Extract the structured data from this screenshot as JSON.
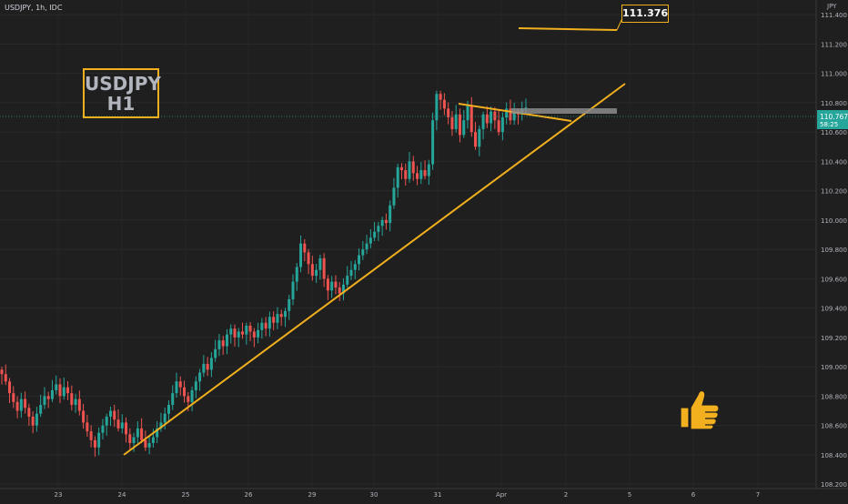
{
  "header": {
    "symbol_line": "USDJPY, 1h, IDC"
  },
  "annotations": {
    "pair_title": "USDJPY",
    "timeframe": "H1",
    "target_label": "111.376",
    "price_label": "110.767",
    "countdown_label": "58:25"
  },
  "icons": {
    "thumbs_up": "thumbs-up-icon"
  },
  "colors": {
    "background": "#1f1f1f",
    "bull": "#26a69a",
    "bear": "#ef5350",
    "annotation": "#f2b01e",
    "axis_text": "#b2b5be",
    "price_label_bg": "#26a69a"
  },
  "chart_data": {
    "type": "candlestick",
    "symbol": "USDJPY",
    "timeframe": "1h",
    "source": "IDC",
    "unit": "JPY",
    "ylim": [
      108.17,
      111.5
    ],
    "y_ticks": [
      111.4,
      111.2,
      111.0,
      110.8,
      110.6,
      110.4,
      110.2,
      110.0,
      109.8,
      109.6,
      109.4,
      109.2,
      109.0,
      108.8,
      108.6,
      108.4,
      108.2
    ],
    "x_ticks": [
      "23",
      "24",
      "25",
      "26",
      "29",
      "30",
      "31",
      "Apr",
      "2",
      "5",
      "6",
      "7"
    ],
    "current_price": 110.767,
    "target_price": 111.376,
    "resistance_zone": [
      110.78,
      110.81
    ],
    "closes": [
      108.95,
      108.9,
      108.82,
      108.76,
      108.7,
      108.78,
      108.72,
      108.66,
      108.6,
      108.68,
      108.74,
      108.8,
      108.78,
      108.84,
      108.88,
      108.8,
      108.86,
      108.82,
      108.74,
      108.78,
      108.7,
      108.62,
      108.56,
      108.5,
      108.45,
      108.55,
      108.6,
      108.66,
      108.7,
      108.64,
      108.58,
      108.62,
      108.54,
      108.48,
      108.52,
      108.58,
      108.5,
      108.45,
      108.48,
      108.52,
      108.58,
      108.62,
      108.68,
      108.74,
      108.82,
      108.9,
      108.86,
      108.8,
      108.76,
      108.84,
      108.9,
      108.96,
      109.02,
      108.98,
      109.06,
      109.12,
      109.18,
      109.14,
      109.22,
      109.26,
      109.2,
      109.24,
      109.22,
      109.28,
      109.24,
      109.2,
      109.25,
      109.3,
      109.26,
      109.34,
      109.3,
      109.36,
      109.34,
      109.38,
      109.46,
      109.58,
      109.68,
      109.84,
      109.78,
      109.7,
      109.62,
      109.66,
      109.74,
      109.6,
      109.52,
      109.58,
      109.54,
      109.5,
      109.56,
      109.62,
      109.66,
      109.7,
      109.76,
      109.8,
      109.84,
      109.88,
      109.92,
      109.96,
      110.0,
      109.98,
      110.1,
      110.22,
      110.36,
      110.34,
      110.28,
      110.4,
      110.32,
      110.28,
      110.34,
      110.3,
      110.38,
      110.68,
      110.86,
      110.82,
      110.76,
      110.7,
      110.62,
      110.72,
      110.58,
      110.68,
      110.78,
      110.6,
      110.5,
      110.62,
      110.72,
      110.66,
      110.74,
      110.68,
      110.6,
      110.7,
      110.76,
      110.68,
      110.74,
      110.72,
      110.76,
      110.767
    ]
  }
}
